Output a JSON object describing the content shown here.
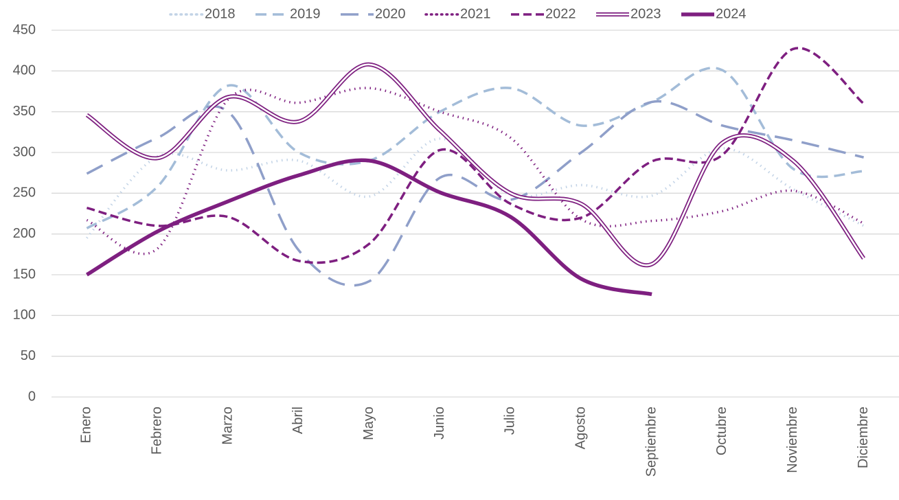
{
  "chart_data": {
    "type": "line",
    "categories": [
      "Enero",
      "Febrero",
      "Marzo",
      "Abril",
      "Mayo",
      "Junio",
      "Julio",
      "Agosto",
      "Septiembre",
      "Octubre",
      "Noviembre",
      "Diciembre"
    ],
    "series": [
      {
        "name": "2018",
        "color": "#c2d3e6",
        "values": [
          195,
          295,
          278,
          290,
          246,
          317,
          248,
          260,
          247,
          305,
          255,
          210
        ]
      },
      {
        "name": "2019",
        "color": "#a3bcd8",
        "values": [
          207,
          258,
          382,
          300,
          290,
          350,
          379,
          333,
          362,
          401,
          280,
          277
        ]
      },
      {
        "name": "2020",
        "color": "#8f9fc9",
        "values": [
          274,
          318,
          350,
          180,
          142,
          269,
          242,
          300,
          362,
          333,
          315,
          294
        ]
      },
      {
        "name": "2021",
        "color": "#7e1f80",
        "values": [
          217,
          182,
          365,
          361,
          379,
          350,
          318,
          218,
          216,
          228,
          253,
          213
        ]
      },
      {
        "name": "2022",
        "color": "#7e1f80",
        "values": [
          232,
          210,
          221,
          167,
          188,
          303,
          237,
          220,
          289,
          297,
          427,
          360
        ]
      },
      {
        "name": "2023",
        "color": "#7e1f80",
        "values": [
          346,
          293,
          368,
          338,
          408,
          327,
          250,
          237,
          163,
          312,
          290,
          170
        ]
      },
      {
        "name": "2024",
        "color": "#7e1f80",
        "values": [
          150,
          203,
          240,
          272,
          290,
          251,
          221,
          145,
          126,
          null,
          null,
          null
        ]
      }
    ],
    "ylim": [
      0,
      450
    ],
    "yticks": [
      0,
      50,
      100,
      150,
      200,
      250,
      300,
      350,
      400,
      450
    ],
    "grid": true,
    "legend": "top"
  }
}
